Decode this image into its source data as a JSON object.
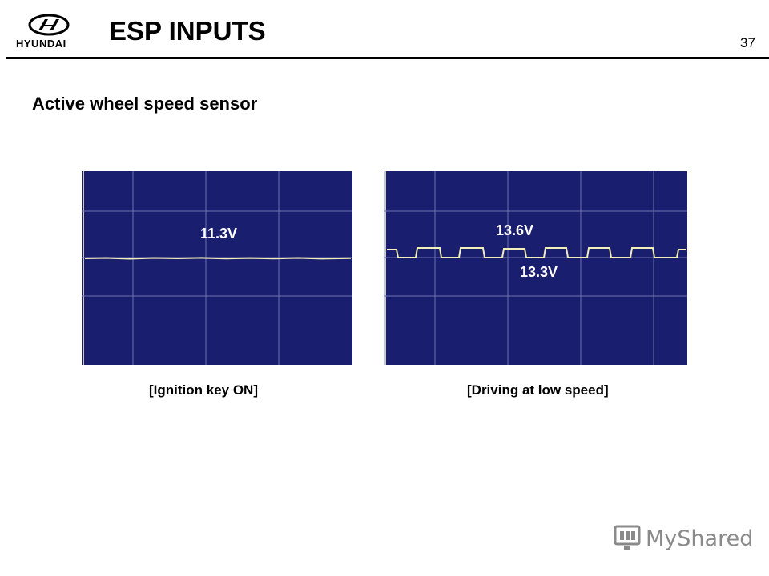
{
  "header": {
    "brand": "HYUNDAI",
    "title": "ESP INPUTS",
    "page_number": "37"
  },
  "subtitle": "Active wheel speed sensor",
  "scopes": [
    {
      "caption": "[Ignition key ON]",
      "labels": [
        "11.3V"
      ]
    },
    {
      "caption": "[Driving at low speed]",
      "labels": [
        "13.6V",
        "13.3V"
      ]
    }
  ],
  "watermark": {
    "text": "MyShared"
  },
  "colors": {
    "scope_bg": "#1a1e6e",
    "grid": "#6f74b0",
    "trace": "#f2efb8",
    "header_rule": "#000000"
  },
  "icons": {
    "brand_logo": "hyundai-logo-icon",
    "watermark_logo": "monitor-icon"
  }
}
